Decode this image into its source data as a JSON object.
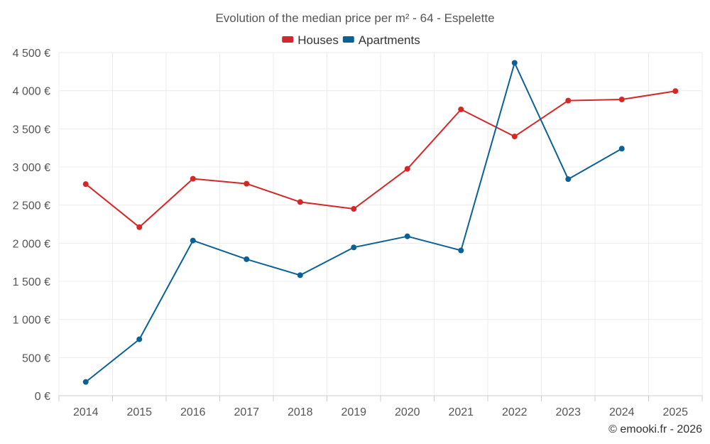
{
  "chart_data": {
    "type": "line",
    "title": "Evolution of the median price per m² - 64 - Espelette",
    "categories": [
      "2014",
      "2015",
      "2016",
      "2017",
      "2018",
      "2019",
      "2020",
      "2021",
      "2022",
      "2023",
      "2024",
      "2025"
    ],
    "series": [
      {
        "name": "Houses",
        "color": "#d62728",
        "values": [
          2775,
          2210,
          2845,
          2780,
          2540,
          2450,
          2975,
          3755,
          3400,
          3870,
          3885,
          3995
        ]
      },
      {
        "name": "Apartments",
        "color": "#0a6196",
        "values": [
          180,
          740,
          2035,
          1790,
          1580,
          1945,
          2090,
          1905,
          4365,
          2840,
          3240,
          null
        ]
      }
    ],
    "ylim": [
      0,
      4500
    ],
    "y_ticks": [
      0,
      500,
      1000,
      1500,
      2000,
      2500,
      3000,
      3500,
      4000,
      4500
    ],
    "y_tick_labels": [
      "0 €",
      "500 €",
      "1 000 €",
      "1 500 €",
      "2 000 €",
      "2 500 €",
      "3 000 €",
      "3 500 €",
      "4 000 €",
      "4 500 €"
    ],
    "xlabel": "",
    "ylabel": "",
    "grid": true,
    "legend_position": "top-center"
  },
  "credit": "© emooki.fr - 2026"
}
